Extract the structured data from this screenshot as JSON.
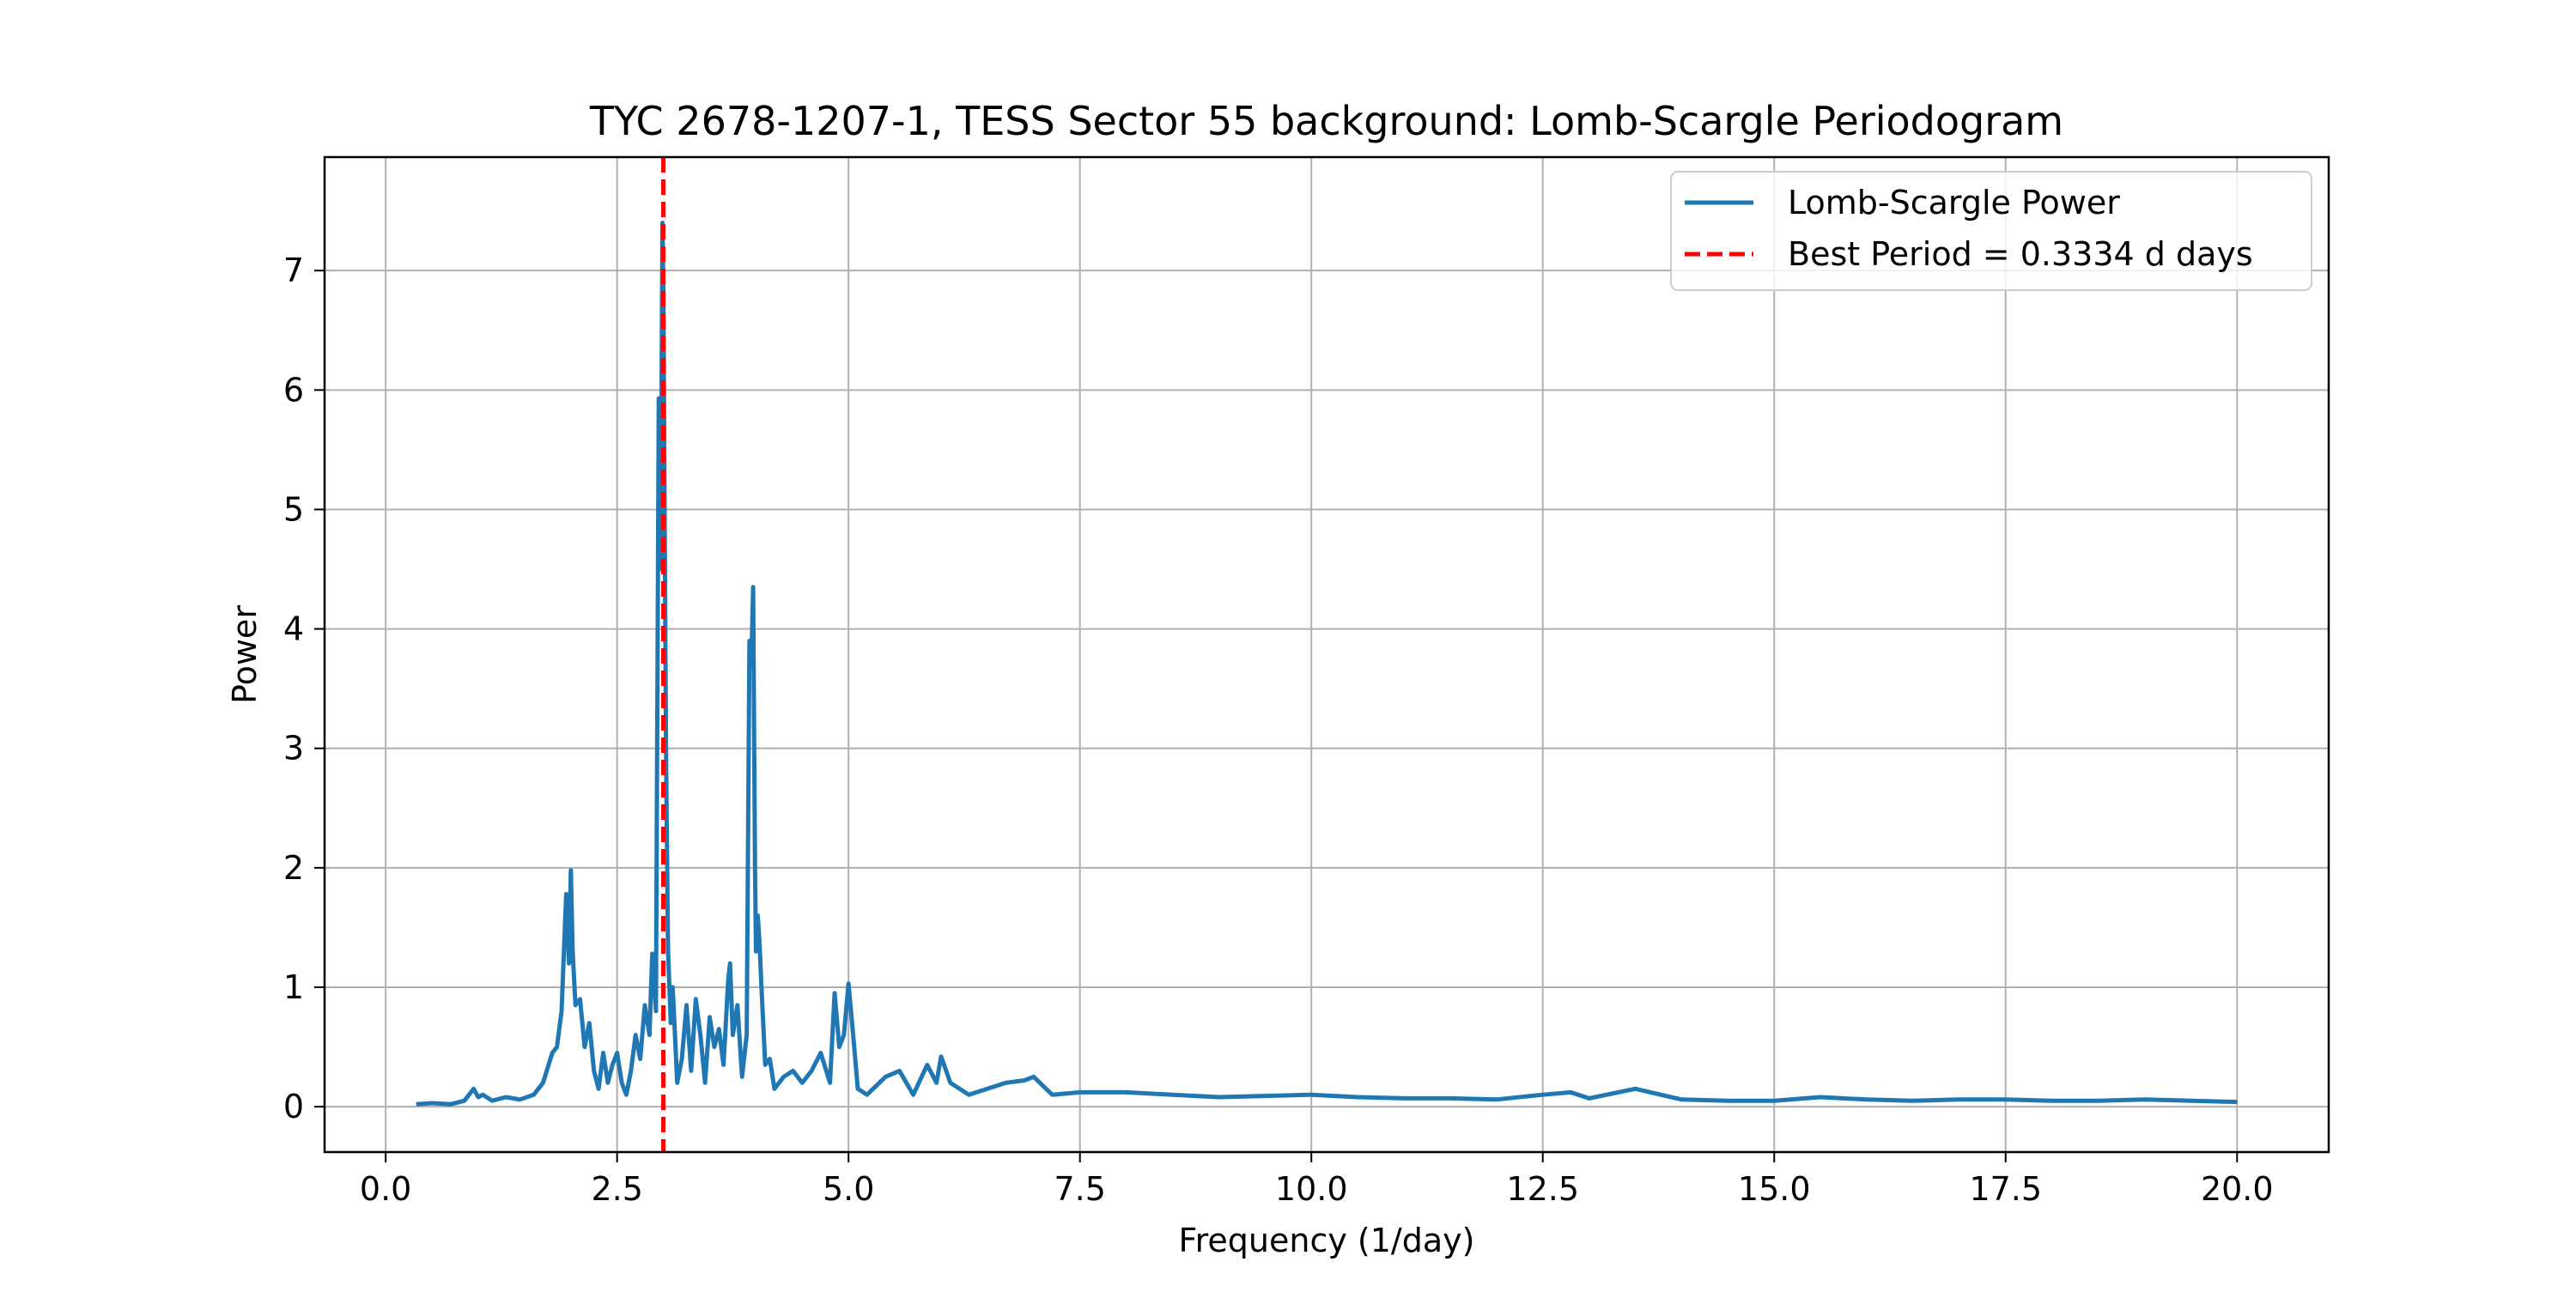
{
  "chart_data": {
    "type": "line",
    "title": "TYC 2678-1207-1, TESS Sector 55 background: Lomb-Scargle Periodogram",
    "xlabel": "Frequency (1/day)",
    "ylabel": "Power",
    "xlim": [
      -0.66,
      20.99
    ],
    "ylim": [
      -0.38,
      7.95
    ],
    "grid": true,
    "legend_position": "top-right",
    "x_ticks": [
      0.0,
      2.5,
      5.0,
      7.5,
      10.0,
      12.5,
      15.0,
      17.5,
      20.0
    ],
    "x_tick_labels": [
      "0.0",
      "2.5",
      "5.0",
      "7.5",
      "10.0",
      "12.5",
      "15.0",
      "17.5",
      "20.0"
    ],
    "y_ticks": [
      0,
      1,
      2,
      3,
      4,
      5,
      6,
      7
    ],
    "y_tick_labels": [
      "0",
      "1",
      "2",
      "3",
      "4",
      "5",
      "6",
      "7"
    ],
    "series": [
      {
        "name": "Lomb-Scargle Power",
        "color": "#1f77b4",
        "x": [
          0.33,
          0.5,
          0.7,
          0.85,
          0.95,
          1.0,
          1.05,
          1.15,
          1.3,
          1.45,
          1.6,
          1.7,
          1.8,
          1.85,
          1.9,
          1.95,
          1.98,
          2.0,
          2.02,
          2.05,
          2.1,
          2.15,
          2.2,
          2.25,
          2.3,
          2.35,
          2.4,
          2.45,
          2.5,
          2.55,
          2.6,
          2.65,
          2.7,
          2.75,
          2.8,
          2.85,
          2.88,
          2.92,
          2.95,
          2.97,
          2.99,
          3.0,
          3.01,
          3.03,
          3.05,
          3.08,
          3.1,
          3.15,
          3.2,
          3.25,
          3.3,
          3.35,
          3.4,
          3.45,
          3.5,
          3.55,
          3.6,
          3.65,
          3.7,
          3.72,
          3.75,
          3.8,
          3.85,
          3.9,
          3.93,
          3.95,
          3.97,
          3.99,
          4.0,
          4.02,
          4.04,
          4.06,
          4.1,
          4.15,
          4.2,
          4.3,
          4.4,
          4.5,
          4.6,
          4.7,
          4.8,
          4.85,
          4.9,
          4.95,
          5.0,
          5.05,
          5.1,
          5.2,
          5.4,
          5.55,
          5.7,
          5.85,
          5.95,
          6.0,
          6.1,
          6.3,
          6.5,
          6.7,
          6.9,
          7.0,
          7.2,
          7.5,
          8.0,
          8.5,
          9.0,
          9.5,
          10.0,
          10.5,
          11.0,
          11.5,
          12.0,
          12.5,
          12.8,
          13.0,
          13.5,
          14.0,
          14.5,
          15.0,
          15.5,
          16.0,
          16.5,
          17.0,
          17.5,
          18.0,
          18.5,
          19.0,
          19.5,
          20.0
        ],
        "values": [
          0.02,
          0.03,
          0.02,
          0.05,
          0.15,
          0.08,
          0.1,
          0.05,
          0.08,
          0.06,
          0.1,
          0.2,
          0.45,
          0.5,
          0.8,
          1.78,
          1.2,
          1.98,
          1.3,
          0.85,
          0.9,
          0.5,
          0.7,
          0.3,
          0.15,
          0.45,
          0.2,
          0.35,
          0.45,
          0.2,
          0.1,
          0.3,
          0.6,
          0.4,
          0.85,
          0.6,
          1.28,
          0.8,
          5.93,
          4.5,
          7.4,
          6.8,
          5.5,
          2.85,
          1.3,
          0.7,
          1.0,
          0.2,
          0.4,
          0.85,
          0.3,
          0.9,
          0.6,
          0.2,
          0.75,
          0.5,
          0.65,
          0.35,
          1.05,
          1.2,
          0.6,
          0.85,
          0.25,
          0.6,
          3.9,
          3.7,
          4.35,
          2.0,
          1.3,
          1.6,
          1.35,
          1.0,
          0.35,
          0.4,
          0.15,
          0.25,
          0.3,
          0.2,
          0.3,
          0.45,
          0.2,
          0.95,
          0.5,
          0.6,
          1.03,
          0.6,
          0.15,
          0.1,
          0.25,
          0.3,
          0.1,
          0.35,
          0.2,
          0.42,
          0.2,
          0.1,
          0.15,
          0.2,
          0.22,
          0.25,
          0.1,
          0.12,
          0.12,
          0.1,
          0.08,
          0.09,
          0.1,
          0.08,
          0.07,
          0.07,
          0.06,
          0.1,
          0.12,
          0.07,
          0.15,
          0.06,
          0.05,
          0.05,
          0.08,
          0.06,
          0.05,
          0.06,
          0.06,
          0.05,
          0.05,
          0.06,
          0.05,
          0.04
        ]
      }
    ],
    "vline": {
      "name": "Best Period = 0.3334 d days",
      "x": 2.9994,
      "color": "#ff0000",
      "style": "dashed"
    }
  }
}
